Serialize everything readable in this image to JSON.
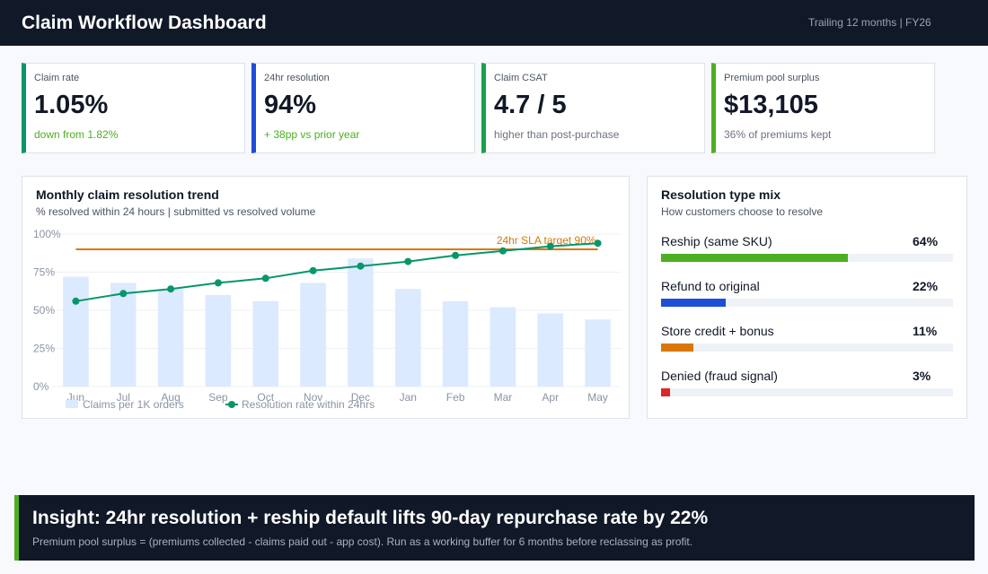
{
  "header": {
    "title": "Claim Workflow Dashboard",
    "subtitle": "Trailing 12 months | FY26"
  },
  "kpis": [
    {
      "label": "Claim rate",
      "value": "1.05%",
      "note": "down from 1.82%",
      "accent": "#059669",
      "note_color": "#4caf22"
    },
    {
      "label": "24hr resolution",
      "value": "94%",
      "note": "+ 38pp vs prior year",
      "accent": "#1d4ed8",
      "note_color": "#4caf22"
    },
    {
      "label": "Claim CSAT",
      "value": "4.7 / 5",
      "note": "higher than post-purchase",
      "accent": "#16a34a",
      "note_color": "#6b7280"
    },
    {
      "label": "Premium pool surplus",
      "value": "$13,105",
      "note": "36% of premiums kept",
      "accent": "#4caf22",
      "note_color": "#6b7280"
    }
  ],
  "trend": {
    "title": "Monthly claim resolution trend",
    "subtitle": "% resolved within 24 hours | submitted vs resolved volume"
  },
  "chart_data": {
    "type": "bar",
    "categories": [
      "Jun",
      "Jul",
      "Aug",
      "Sep",
      "Oct",
      "Nov",
      "Dec",
      "Jan",
      "Feb",
      "Mar",
      "Apr",
      "May"
    ],
    "y_ticks": [
      "0%",
      "25%",
      "50%",
      "75%",
      "100%"
    ],
    "ylim": [
      0,
      100
    ],
    "grid": true,
    "series": [
      {
        "name": "Claims per 1K orders",
        "type": "bar",
        "color": "#dbeafe",
        "values": [
          72,
          68,
          64,
          60,
          56,
          68,
          84,
          64,
          56,
          52,
          48,
          44
        ]
      },
      {
        "name": "Resolution rate within 24hrs",
        "type": "line",
        "color": "#059669",
        "values": [
          56,
          61,
          64,
          68,
          71,
          76,
          79,
          82,
          86,
          89,
          92,
          94
        ]
      }
    ],
    "target": {
      "label": "24hr SLA target 90%",
      "value": 90,
      "color": "#d97706"
    },
    "legend_position": "bottom-left"
  },
  "mix": {
    "title": "Resolution type mix",
    "subtitle": "How customers choose to resolve",
    "items": [
      {
        "label": "Reship (same SKU)",
        "pct": "64%",
        "value": 64,
        "color": "#4caf22"
      },
      {
        "label": "Refund to original",
        "pct": "22%",
        "value": 22,
        "color": "#1d4ed8"
      },
      {
        "label": "Store credit + bonus",
        "pct": "11%",
        "value": 11,
        "color": "#d97706"
      },
      {
        "label": "Denied (fraud signal)",
        "pct": "3%",
        "value": 3,
        "color": "#dc2626"
      }
    ]
  },
  "insight": {
    "title": "Insight: 24hr resolution + reship default lifts 90-day repurchase rate by 22%",
    "body": "Premium pool surplus = (premiums collected - claims paid out - app cost). Run as a working buffer for 6 months before reclassing as profit."
  }
}
